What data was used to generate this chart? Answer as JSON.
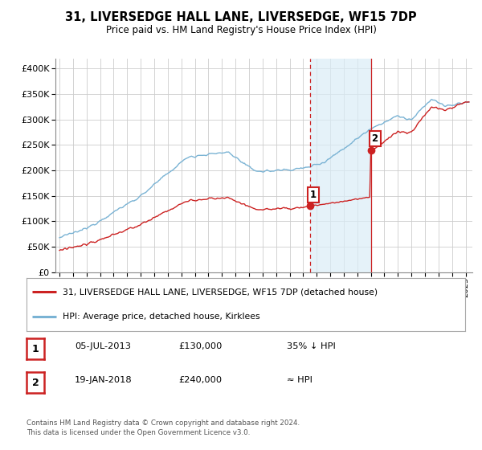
{
  "title": "31, LIVERSEDGE HALL LANE, LIVERSEDGE, WF15 7DP",
  "subtitle": "Price paid vs. HM Land Registry's House Price Index (HPI)",
  "ytick_values": [
    0,
    50000,
    100000,
    150000,
    200000,
    250000,
    300000,
    350000,
    400000
  ],
  "ylim": [
    0,
    420000
  ],
  "xlim_start": 1994.7,
  "xlim_end": 2025.5,
  "hpi_color": "#7ab3d4",
  "price_color": "#cc2222",
  "sale1_x": 2013.5,
  "sale1_y": 130000,
  "sale1_label": "1",
  "sale2_x": 2018.05,
  "sale2_y": 240000,
  "sale2_label": "2",
  "shaded_x_start": 2013.5,
  "shaded_x_end": 2018.05,
  "legend_red_label": "31, LIVERSEDGE HALL LANE, LIVERSEDGE, WF15 7DP (detached house)",
  "legend_blue_label": "HPI: Average price, detached house, Kirklees",
  "table_rows": [
    {
      "num": "1",
      "date": "05-JUL-2013",
      "price": "£130,000",
      "hpi": "35% ↓ HPI"
    },
    {
      "num": "2",
      "date": "19-JAN-2018",
      "price": "£240,000",
      "hpi": "≈ HPI"
    }
  ],
  "footer": "Contains HM Land Registry data © Crown copyright and database right 2024.\nThis data is licensed under the Open Government Licence v3.0.",
  "background_color": "#ffffff",
  "grid_color": "#cccccc"
}
